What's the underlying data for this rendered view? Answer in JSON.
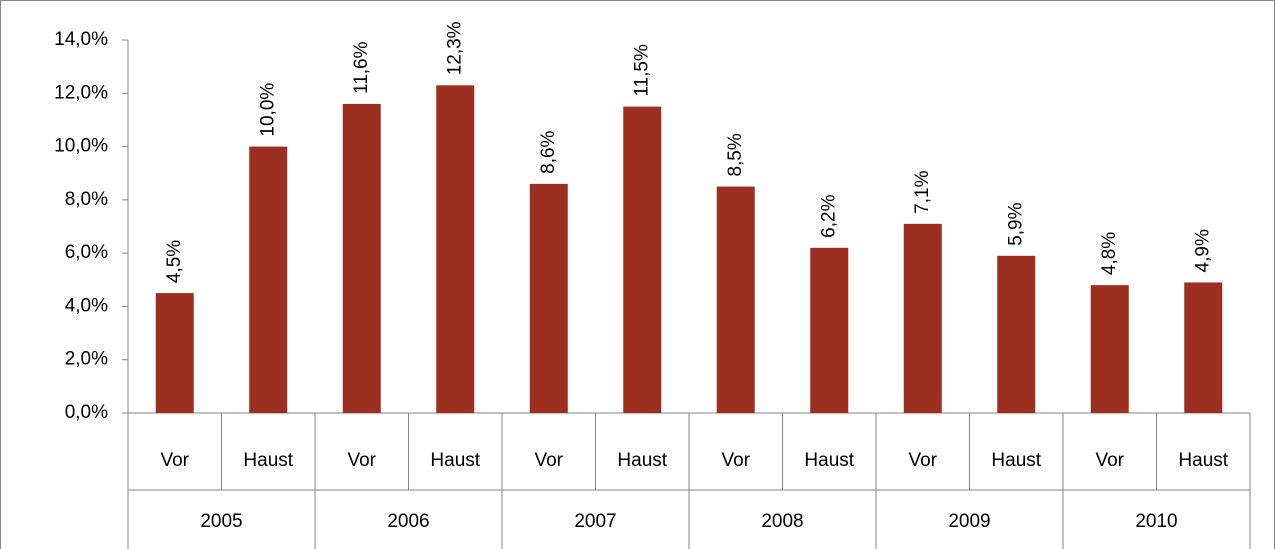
{
  "chart_data": {
    "type": "bar",
    "categories": [
      "Vor",
      "Haust",
      "Vor",
      "Haust",
      "Vor",
      "Haust",
      "Vor",
      "Haust",
      "Vor",
      "Haust",
      "Vor",
      "Haust"
    ],
    "groups": [
      "2005",
      "2006",
      "2007",
      "2008",
      "2009",
      "2010"
    ],
    "values": [
      4.5,
      10.0,
      11.6,
      12.3,
      8.6,
      11.5,
      8.5,
      6.2,
      7.1,
      5.9,
      4.8,
      4.9
    ],
    "value_labels": [
      "4,5%",
      "10,0%",
      "11,6%",
      "12,3%",
      "8,6%",
      "11,5%",
      "8,5%",
      "6,2%",
      "7,1%",
      "5,9%",
      "4,8%",
      "4,9%"
    ],
    "color": "#9c2f20",
    "ylim": [
      0,
      14
    ],
    "yticks": [
      {
        "value": 0,
        "label": "0,0%"
      },
      {
        "value": 2,
        "label": "2,0%"
      },
      {
        "value": 4,
        "label": "4,0%"
      },
      {
        "value": 6,
        "label": "6,0%"
      },
      {
        "value": 8,
        "label": "8,0%"
      },
      {
        "value": 10,
        "label": "10,0%"
      },
      {
        "value": 12,
        "label": "12,0%"
      },
      {
        "value": 14,
        "label": "14,0%"
      }
    ],
    "grid": false
  }
}
